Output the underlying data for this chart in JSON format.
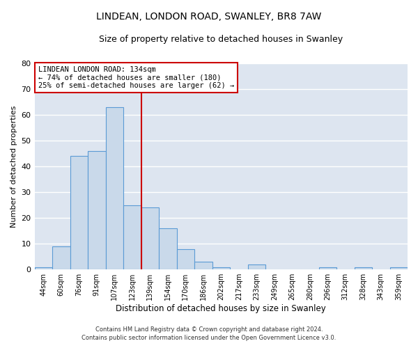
{
  "title": "LINDEAN, LONDON ROAD, SWANLEY, BR8 7AW",
  "subtitle": "Size of property relative to detached houses in Swanley",
  "xlabel": "Distribution of detached houses by size in Swanley",
  "ylabel": "Number of detached properties",
  "bin_labels": [
    "44sqm",
    "60sqm",
    "76sqm",
    "91sqm",
    "107sqm",
    "123sqm",
    "139sqm",
    "154sqm",
    "170sqm",
    "186sqm",
    "202sqm",
    "217sqm",
    "233sqm",
    "249sqm",
    "265sqm",
    "280sqm",
    "296sqm",
    "312sqm",
    "328sqm",
    "343sqm",
    "359sqm"
  ],
  "bar_heights": [
    1,
    9,
    44,
    46,
    63,
    25,
    24,
    16,
    8,
    3,
    1,
    0,
    2,
    0,
    0,
    0,
    1,
    0,
    1,
    0,
    1
  ],
  "bar_color": "#c9d9ea",
  "bar_edge_color": "#5b9bd5",
  "ylim": [
    0,
    80
  ],
  "yticks": [
    0,
    10,
    20,
    30,
    40,
    50,
    60,
    70,
    80
  ],
  "marker_bin_index": 5.5,
  "marker_color": "#cc0000",
  "annotation_title": "LINDEAN LONDON ROAD: 134sqm",
  "annotation_line1": "← 74% of detached houses are smaller (180)",
  "annotation_line2": "25% of semi-detached houses are larger (62) →",
  "annotation_box_color": "#cc0000",
  "plot_bg_color": "#dde5f0",
  "fig_bg_color": "#ffffff",
  "grid_color": "#ffffff",
  "footer1": "Contains HM Land Registry data © Crown copyright and database right 2024.",
  "footer2": "Contains public sector information licensed under the Open Government Licence v3.0."
}
